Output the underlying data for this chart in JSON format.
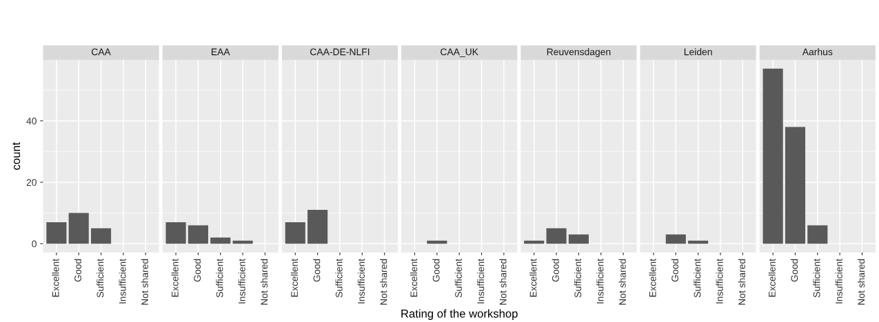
{
  "chart_data": [
    {
      "type": "bar",
      "title": "CAA",
      "ylabel": "count",
      "categories": [
        "Excellent",
        "Good",
        "Sufficient",
        "Insufficient",
        "Not shared"
      ],
      "values": [
        7,
        10,
        5,
        0,
        0
      ],
      "color": "#595959",
      "ylim": [
        -2.85,
        59.85
      ],
      "yticks": [
        0,
        20,
        40
      ],
      "grid": true
    },
    {
      "type": "bar",
      "title": "EAA",
      "categories": [
        "Excellent",
        "Good",
        "Sufficient",
        "Insufficient",
        "Not shared"
      ],
      "values": [
        7,
        6,
        2,
        1,
        0
      ],
      "color": "#595959",
      "ylim": [
        -2.85,
        59.85
      ],
      "yticks": [
        0,
        20,
        40
      ],
      "grid": true,
      "tick_labels": "x"
    },
    {
      "type": "bar",
      "title": "CAA-DE-NLFI",
      "categories": [
        "Excellent",
        "Good",
        "Sufficient",
        "Insufficient",
        "Not shared"
      ],
      "values": [
        7,
        11,
        0,
        0,
        0
      ],
      "color": "#595959",
      "ylim": [
        -2.85,
        59.85
      ],
      "yticks": [
        0,
        20,
        40
      ],
      "grid": true,
      "tick_labels": "x"
    },
    {
      "type": "bar",
      "title": "CAA_UK",
      "xlabel": "Rating of the workshop",
      "categories": [
        "Excellent",
        "Good",
        "Sufficient",
        "Insufficient",
        "Not shared"
      ],
      "values": [
        0,
        1,
        0,
        0,
        0
      ],
      "color": "#595959",
      "ylim": [
        -2.85,
        59.85
      ],
      "yticks": [
        0,
        20,
        40
      ],
      "grid": true,
      "tick_labels": "x"
    },
    {
      "type": "bar",
      "title": "Reuvensdagen",
      "categories": [
        "Excellent",
        "Good",
        "Sufficient",
        "Insufficient",
        "Not shared"
      ],
      "values": [
        1,
        5,
        3,
        0,
        0
      ],
      "color": "#595959",
      "ylim": [
        -2.85,
        59.85
      ],
      "yticks": [
        0,
        20,
        40
      ],
      "grid": true,
      "tick_labels": "x"
    },
    {
      "type": "bar",
      "title": "Leiden",
      "categories": [
        "Excellent",
        "Good",
        "Sufficient",
        "Insufficient",
        "Not shared"
      ],
      "values": [
        0,
        3,
        1,
        0,
        0
      ],
      "color": "#595959",
      "ylim": [
        -2.85,
        59.85
      ],
      "yticks": [
        0,
        20,
        40
      ],
      "grid": true,
      "tick_labels": "x"
    },
    {
      "type": "bar",
      "title": "Aarhus",
      "categories": [
        "Excellent",
        "Good",
        "Sufficient",
        "Insufficient",
        "Not shared"
      ],
      "values": [
        57,
        38,
        6,
        0,
        0
      ],
      "color": "#595959",
      "ylim": [
        -2.85,
        59.85
      ],
      "yticks": [
        0,
        20,
        40
      ],
      "grid": true,
      "tick_labels": "x"
    }
  ]
}
